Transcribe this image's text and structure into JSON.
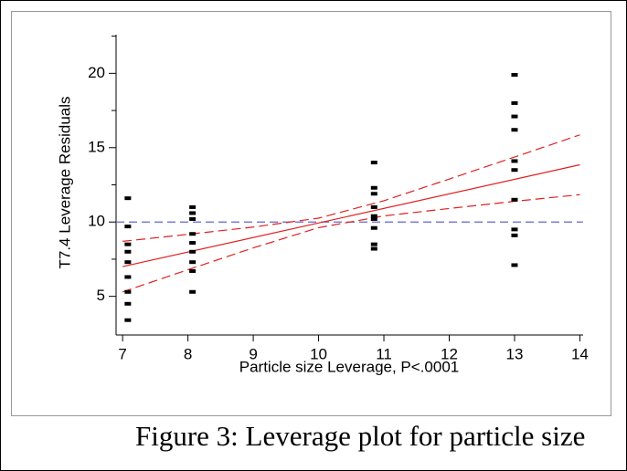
{
  "chart_data": {
    "type": "scatter",
    "xlabel": "Particle size Leverage, P<.0001",
    "ylabel": "T7.4 Leverage Residuals",
    "xlim": [
      6.9,
      14.05
    ],
    "ylim": [
      2.4,
      22.6
    ],
    "xticks": [
      7,
      8,
      9,
      10,
      11,
      12,
      13,
      14
    ],
    "yticks": [
      5,
      10,
      15,
      20
    ],
    "yminor_ticks": [
      7.5,
      12.5,
      17.5,
      22.5
    ],
    "series": [
      {
        "color": "#000000",
        "x": [
          7.08,
          7.08,
          7.08,
          7.08,
          7.08,
          7.08,
          7.08,
          7.08,
          7.08,
          8.07,
          8.07,
          8.07,
          8.07,
          8.07,
          8.07,
          8.07,
          8.07,
          8.07,
          10.85,
          10.85,
          10.85,
          10.85,
          10.85,
          10.85,
          10.85,
          10.85,
          10.85,
          13.0,
          13.0,
          13.0,
          13.0,
          13.0,
          13.0,
          13.0,
          13.0,
          13.0,
          13.0
        ],
        "values": [
          11.6,
          9.7,
          8.5,
          8.0,
          7.3,
          6.3,
          5.3,
          4.5,
          3.4,
          11.0,
          10.6,
          10.2,
          9.2,
          8.6,
          8.0,
          7.3,
          6.7,
          5.3,
          14.0,
          12.3,
          11.9,
          11.0,
          10.4,
          10.2,
          9.6,
          8.5,
          8.2,
          19.9,
          18.0,
          17.1,
          16.2,
          14.1,
          13.5,
          11.5,
          9.5,
          9.1,
          7.1
        ]
      }
    ],
    "lines": [
      {
        "color": "#e02020",
        "dashed": false,
        "x": [
          7,
          14
        ],
        "values": [
          7.0,
          13.85
        ]
      },
      {
        "color": "#e02020",
        "dashed": true,
        "x": [
          7,
          8,
          9,
          10,
          11,
          12,
          13,
          14
        ],
        "values": [
          8.7,
          9.17,
          9.66,
          10.26,
          11.43,
          12.89,
          14.37,
          15.86
        ]
      },
      {
        "color": "#e02020",
        "dashed": true,
        "x": [
          7,
          8,
          9,
          10,
          11,
          12,
          13,
          14
        ],
        "values": [
          5.3,
          6.79,
          8.26,
          9.62,
          10.41,
          10.91,
          11.39,
          11.84
        ]
      }
    ],
    "reference_line": {
      "value": 10,
      "color": "#6666cc"
    }
  },
  "caption": "Figure 3: Leverage plot for particle size"
}
